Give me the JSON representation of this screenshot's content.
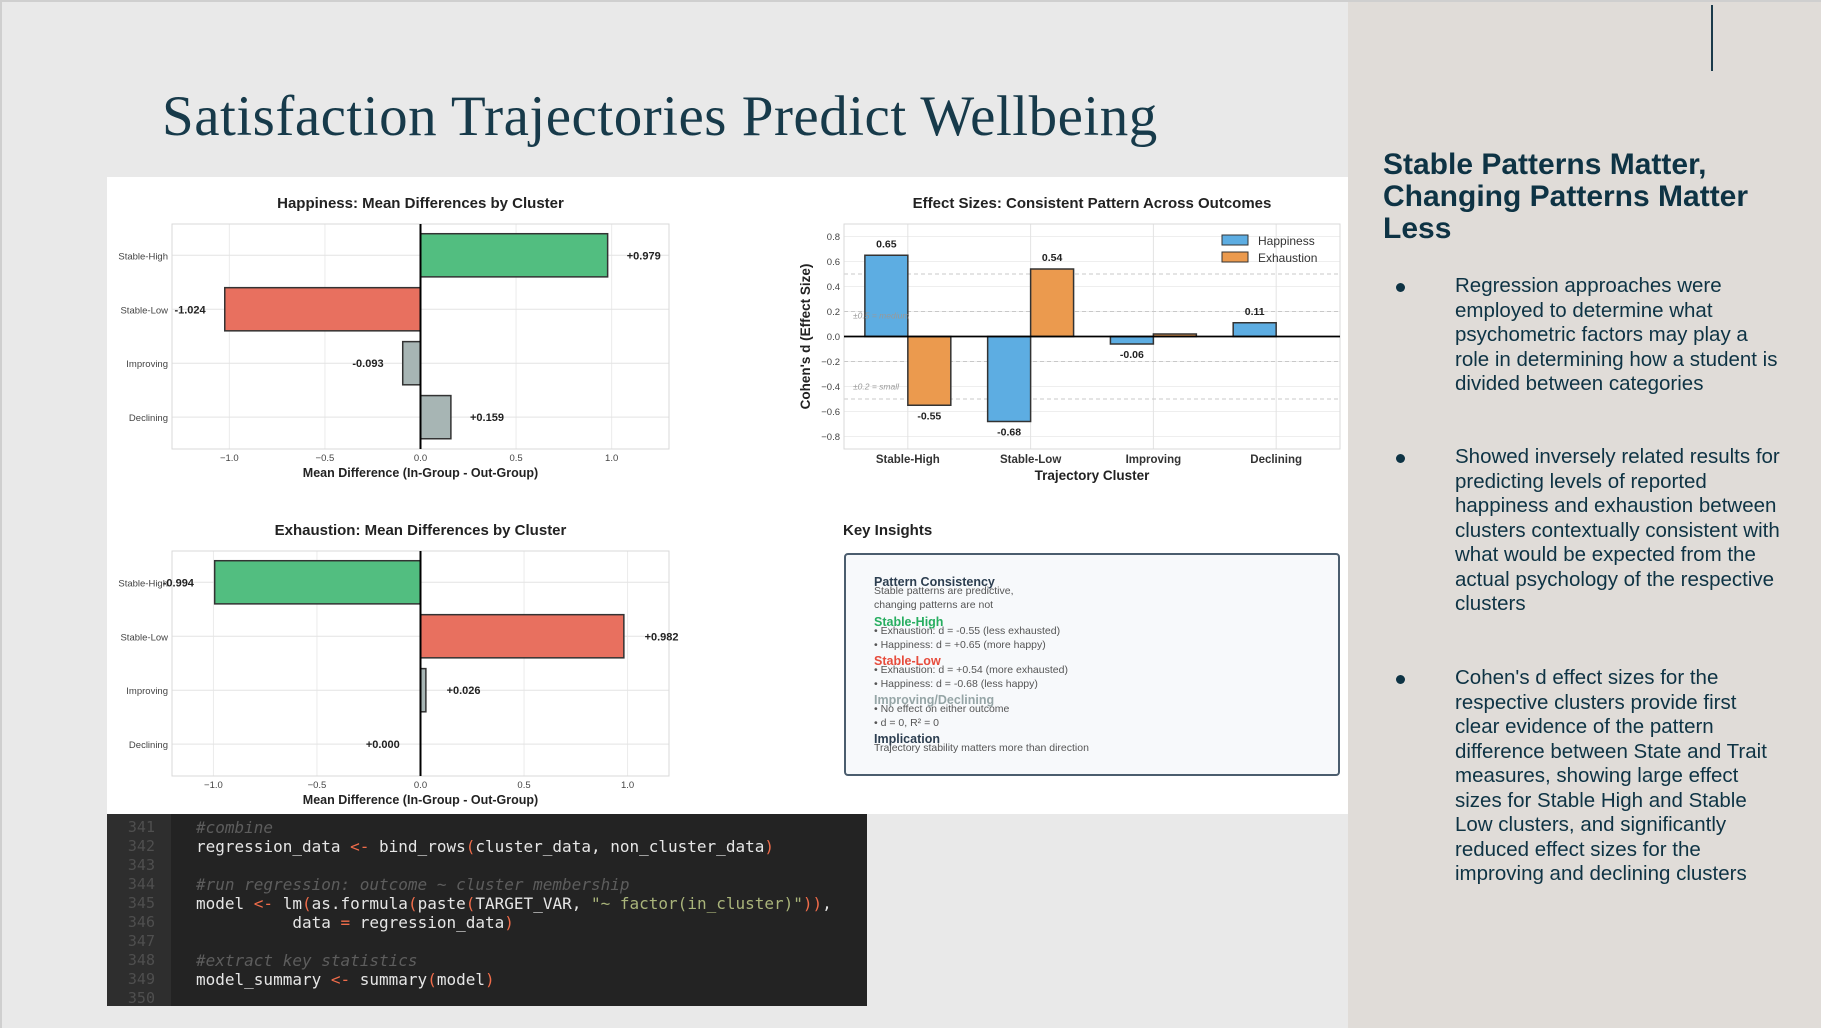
{
  "slide_title": "Satisfaction Trajectories Predict Wellbeing",
  "colors": {
    "green": "#52be80",
    "red": "#e8705f",
    "gray": "#a7b5b4",
    "blue": "#5dade2",
    "orange": "#eb9a4e",
    "heading": "#0e3344"
  },
  "chart_data": [
    {
      "type": "bar",
      "orientation": "horizontal",
      "title": "Happiness: Mean Differences by Cluster",
      "xlabel": "Mean Difference (In-Group - Out-Group)",
      "categories": [
        "Stable-High",
        "Stable-Low",
        "Improving",
        "Declining"
      ],
      "values": [
        0.979,
        -1.024,
        -0.093,
        0.159
      ],
      "labels": [
        "+0.979",
        "-1.024",
        "-0.093",
        "+0.159"
      ],
      "bar_colors": [
        "green",
        "red",
        "gray",
        "gray"
      ],
      "xlim": [
        -1.3,
        1.3
      ],
      "xticks": [
        -1.0,
        -0.5,
        0.0,
        0.5,
        1.0
      ],
      "xtick_labels": [
        "−1.0",
        "−0.5",
        "0.0",
        "0.5",
        "1.0"
      ],
      "grid": true
    },
    {
      "type": "bar",
      "orientation": "horizontal",
      "title": "Exhaustion: Mean Differences by Cluster",
      "xlabel": "Mean Difference (In-Group - Out-Group)",
      "categories": [
        "Stable-High",
        "Stable-Low",
        "Improving",
        "Declining"
      ],
      "values": [
        -0.994,
        0.982,
        0.026,
        0.0
      ],
      "labels": [
        "-0.994",
        "+0.982",
        "+0.026",
        "+0.000"
      ],
      "bar_colors": [
        "green",
        "red",
        "gray",
        "gray"
      ],
      "xlim": [
        -1.2,
        1.2
      ],
      "xticks": [
        -1.0,
        -0.5,
        0.0,
        0.5,
        1.0
      ],
      "xtick_labels": [
        "−1.0",
        "−0.5",
        "0.0",
        "0.5",
        "1.0"
      ],
      "grid": true
    },
    {
      "type": "bar",
      "orientation": "vertical",
      "title": "Effect Sizes: Consistent Pattern Across Outcomes",
      "xlabel": "Trajectory Cluster",
      "ylabel": "Cohen's d (Effect Size)",
      "categories": [
        "Stable-High",
        "Stable-Low",
        "Improving",
        "Declining"
      ],
      "series": [
        {
          "name": "Happiness",
          "color": "blue",
          "values": [
            0.65,
            -0.68,
            -0.06,
            0.11
          ],
          "labels": [
            "0.65",
            "-0.68",
            "-0.06",
            "0.11"
          ]
        },
        {
          "name": "Exhaustion",
          "color": "orange",
          "values": [
            -0.55,
            0.54,
            0.02,
            0.0
          ],
          "labels": [
            "-0.55",
            "0.54",
            "",
            ""
          ]
        }
      ],
      "ylim": [
        -0.9,
        0.9
      ],
      "yticks": [
        -0.8,
        -0.6,
        -0.4,
        -0.2,
        0.0,
        0.2,
        0.4,
        0.6,
        0.8
      ],
      "ytick_labels": [
        "−0.8",
        "−0.6",
        "−0.4",
        "−0.2",
        "0.0",
        "0.2",
        "0.4",
        "0.6",
        "0.8"
      ],
      "reference_lines": [
        0.5,
        0.2,
        -0.2,
        -0.5
      ],
      "annotations": [
        {
          "text": "±0.5 = medium",
          "y": 0.17
        },
        {
          "text": "±0.2 = small",
          "y": -0.4
        }
      ],
      "legend": "top-right",
      "grid": true
    }
  ],
  "key_insights": {
    "title": "Key Insights",
    "sections": [
      {
        "heading": "Pattern Consistency",
        "color": "#2c3e50",
        "lines": [
          "Stable patterns are predictive,",
          "changing patterns are not"
        ]
      },
      {
        "heading": "Stable-High",
        "color": "#27ae60",
        "lines": [
          "• Exhaustion: d = -0.55 (less exhausted)",
          "• Happiness: d = +0.65 (more happy)"
        ]
      },
      {
        "heading": "Stable-Low",
        "color": "#e74c3c",
        "lines": [
          "• Exhaustion: d = +0.54 (more exhausted)",
          "• Happiness: d = -0.68 (less happy)"
        ]
      },
      {
        "heading": "Improving/Declining",
        "color": "#95a5a6",
        "lines": [
          "• No effect on either outcome",
          "• d = 0, R² = 0"
        ]
      },
      {
        "heading": "Implication",
        "color": "#2c3e50",
        "lines": [
          "Trajectory stability matters more than direction"
        ]
      }
    ]
  },
  "code": {
    "line_numbers": [
      "341",
      "342",
      "343",
      "344",
      "345",
      "346",
      "347",
      "348",
      "349",
      "350"
    ],
    "lines": [
      [
        [
          "cm",
          "#combine"
        ]
      ],
      [
        [
          "",
          "regression_data "
        ],
        [
          "op",
          "<-"
        ],
        [
          "",
          " bind_rows"
        ],
        [
          "op",
          "("
        ],
        [
          "",
          "cluster_data, non_cluster_data"
        ],
        [
          "op",
          ")"
        ]
      ],
      [],
      [
        [
          "cm",
          "#run regression: outcome ~ cluster membership"
        ]
      ],
      [
        [
          "",
          "model "
        ],
        [
          "op",
          "<-"
        ],
        [
          "",
          " lm"
        ],
        [
          "op",
          "("
        ],
        [
          "",
          "as.formula"
        ],
        [
          "op",
          "("
        ],
        [
          "",
          "paste"
        ],
        [
          "op",
          "("
        ],
        [
          "",
          "TARGET_VAR, "
        ],
        [
          "st",
          "\"~ factor(in_cluster)\""
        ],
        [
          "op",
          "))"
        ],
        [
          "",
          ","
        ]
      ],
      [
        [
          "",
          "          data "
        ],
        [
          "op",
          "="
        ],
        [
          "",
          " regression_data"
        ],
        [
          "op",
          ")"
        ]
      ],
      [],
      [
        [
          "cm",
          "#extract key statistics"
        ]
      ],
      [
        [
          "",
          "model_summary "
        ],
        [
          "op",
          "<-"
        ],
        [
          "",
          " summary"
        ],
        [
          "op",
          "("
        ],
        [
          "",
          "model"
        ],
        [
          "op",
          ")"
        ]
      ],
      []
    ]
  },
  "sidebar": {
    "heading": "Stable Patterns Matter, Changing Patterns Matter Less",
    "bullets": [
      "Regression approaches were employed to determine what psychometric factors may play a role in determining how a student is divided between categories",
      "Showed inversely related results for predicting levels of reported happiness and exhaustion between clusters contextually consistent with what would be expected from the actual psychology of the respective clusters",
      "Cohen's d effect sizes for the respective clusters provide first clear evidence of the pattern difference between State and Trait measures, showing large effect sizes for Stable High and Stable Low clusters, and significantly reduced effect sizes for the improving and declining clusters"
    ]
  }
}
